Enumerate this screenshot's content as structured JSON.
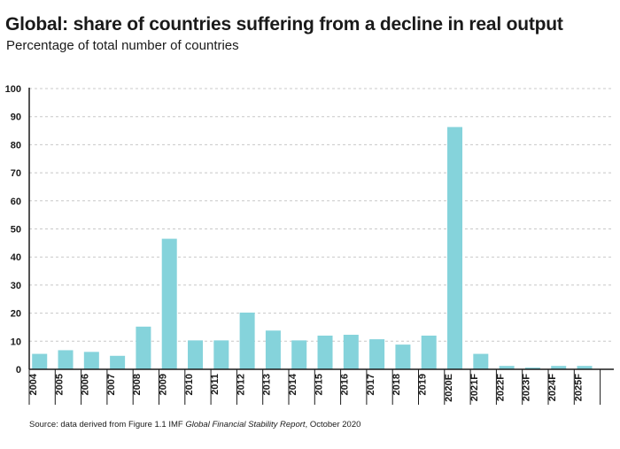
{
  "title": "Global: share of countries suffering from a decline in real output",
  "subtitle": "Percentage of total number of countries",
  "source": {
    "prefix": "Source: data derived from Figure 1.1 IMF ",
    "italic": "Global Financial Stability Report",
    "suffix": ", October 2020"
  },
  "colors": {
    "bar": "#85d3db",
    "grid": "#c8c8c8",
    "axis": "#1a1a1a"
  },
  "chart_data": {
    "type": "bar",
    "categories": [
      "2004",
      "2005",
      "2006",
      "2007",
      "2008",
      "2009",
      "2010",
      "2011",
      "2012",
      "2013",
      "2014",
      "2015",
      "2016",
      "2017",
      "2018",
      "2019",
      "2020E",
      "2021F",
      "2022F",
      "2023F",
      "2024F",
      "2025F"
    ],
    "values": [
      5.5,
      6.8,
      6.2,
      4.8,
      15.2,
      46.5,
      10.3,
      10.3,
      20.2,
      13.8,
      10.3,
      12.0,
      12.3,
      10.7,
      8.8,
      12.0,
      86.3,
      5.5,
      1.2,
      0.6,
      1.2,
      1.2
    ],
    "ylim": [
      0,
      100
    ],
    "yticks": [
      0,
      10,
      20,
      30,
      40,
      50,
      60,
      70,
      80,
      90,
      100
    ],
    "xlabel": "",
    "ylabel": "",
    "grid": true,
    "legend": "none"
  }
}
